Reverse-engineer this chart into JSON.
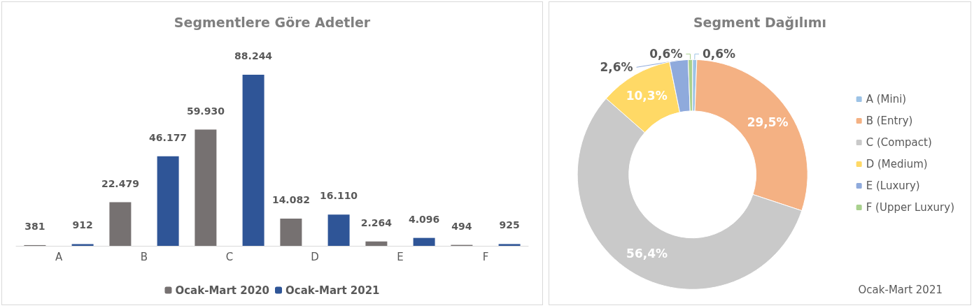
{
  "chart_data": [
    {
      "type": "bar",
      "title": "Segmentlere Göre Adetler",
      "categories": [
        "A",
        "B",
        "C",
        "D",
        "E",
        "F"
      ],
      "series": [
        {
          "name": "Ocak-Mart 2020",
          "color": "#767171",
          "values": [
            381,
            22479,
            59930,
            14082,
            2264,
            494
          ],
          "value_labels": [
            "381",
            "22.479",
            "59.930",
            "14.082",
            "2.264",
            "494"
          ]
        },
        {
          "name": "Ocak-Mart 2021",
          "color": "#2f5597",
          "values": [
            912,
            46177,
            88244,
            16110,
            4096,
            925
          ],
          "value_labels": [
            "912",
            "46.177",
            "88.244",
            "16.110",
            "4.096",
            "925"
          ]
        }
      ],
      "legend": "bottom"
    },
    {
      "type": "donut",
      "title": "Segment Dağılımı",
      "categories": [
        "A (Mini)",
        "B (Entry)",
        "C (Compact)",
        "D (Medium)",
        "E (Luxury)",
        "F (Upper Luxury)"
      ],
      "values": [
        0.6,
        29.5,
        56.4,
        10.3,
        2.6,
        0.6
      ],
      "value_labels": [
        "0,6%",
        "29,5%",
        "56,4%",
        "10,3%",
        "2,6%",
        "0,6%"
      ],
      "colors": [
        "#9dc3e6",
        "#f4b183",
        "#c9c9c9",
        "#ffd966",
        "#8faadc",
        "#a9d18e"
      ],
      "legend": "right",
      "annotations": [
        "Ocak-Mart 2021"
      ]
    }
  ]
}
